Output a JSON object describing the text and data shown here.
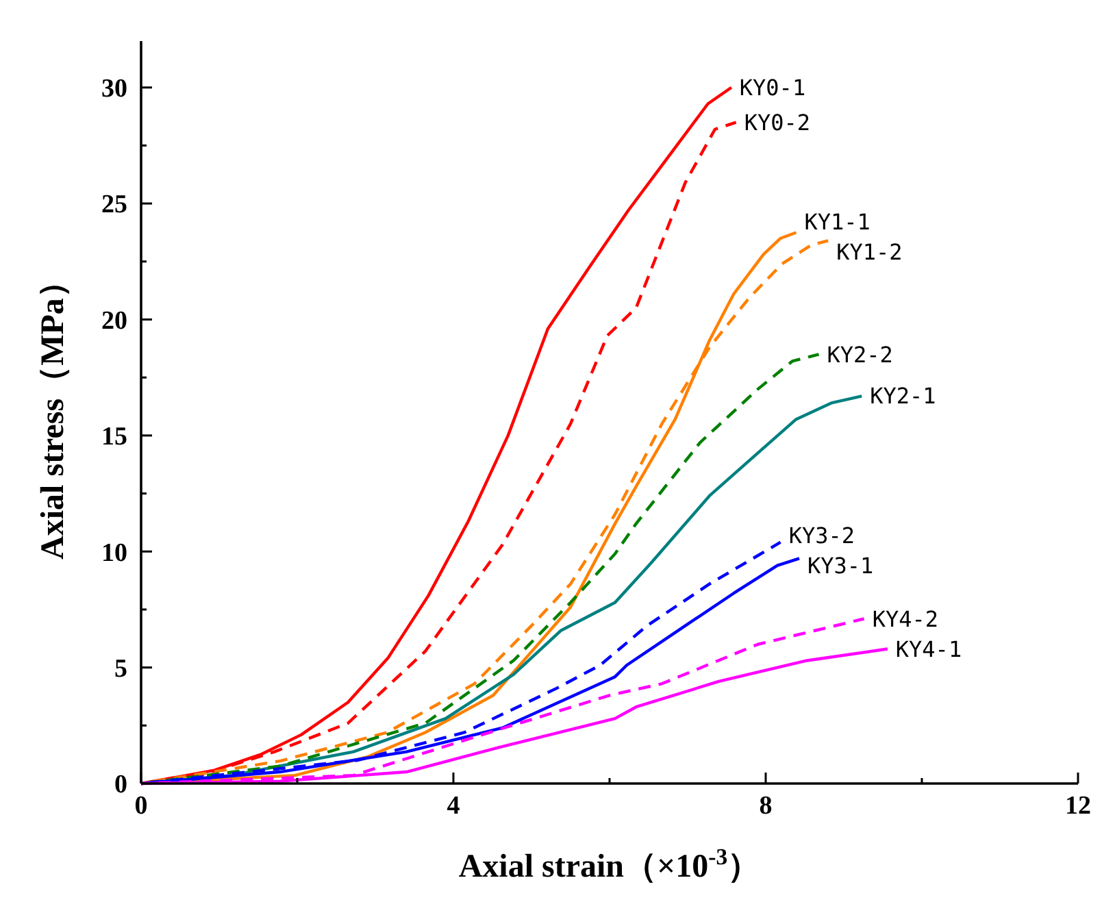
{
  "chart_data": {
    "type": "line",
    "xlabel": "Axial strain（×10$^{-3}$）",
    "ylabel": "Axial stress（MPa）",
    "xlim": [
      0,
      12
    ],
    "ylim": [
      0,
      32
    ],
    "xticks": [
      0,
      {
        "value": 2,
        "label": null
      },
      4,
      {
        "value": 6,
        "label": null
      },
      8,
      {
        "value": 10,
        "label": null
      },
      12
    ],
    "yticks": [
      0,
      {
        "value": 2.5,
        "label": null
      },
      5,
      {
        "value": 7.5,
        "label": null
      },
      10,
      {
        "value": 12.5,
        "label": null
      },
      15,
      {
        "value": 17.5,
        "label": null
      },
      20,
      {
        "value": 22.5,
        "label": null
      },
      25,
      {
        "value": 27.5,
        "label": null
      },
      30
    ],
    "grid": false,
    "marker": "none",
    "series": [
      {
        "name": "KY0-1",
        "color": "#ff0000",
        "line_style": "solid",
        "x": [
          0,
          0.5,
          0.94,
          1.54,
          2.05,
          2.65,
          3.16,
          3.68,
          4.19,
          4.7,
          5.21,
          5.73,
          6.24,
          6.75,
          7.26,
          7.56
        ],
        "values": [
          0,
          0.3,
          0.57,
          1.26,
          2.1,
          3.5,
          5.4,
          8.1,
          11.3,
          15.0,
          19.6,
          22.2,
          24.7,
          27.0,
          29.3,
          30.0
        ]
      },
      {
        "name": "KY0-2",
        "color": "#ff0000",
        "line_style": "dashed",
        "x": [
          0,
          0.8,
          1.71,
          2.65,
          3.64,
          4.63,
          5.5,
          5.97,
          6.34,
          6.97,
          7.35,
          7.62
        ],
        "values": [
          0,
          0.4,
          1.37,
          2.6,
          5.7,
          10.3,
          15.5,
          19.3,
          20.5,
          25.9,
          28.2,
          28.5
        ]
      },
      {
        "name": "KY1-1",
        "color": "#ff8000",
        "line_style": "solid",
        "x": [
          0,
          1.97,
          2.9,
          3.64,
          4.51,
          5.5,
          6.07,
          6.34,
          6.84,
          7.28,
          7.59,
          7.97,
          8.19,
          8.39
        ],
        "values": [
          0,
          0.35,
          1.15,
          2.2,
          3.8,
          7.6,
          11.2,
          12.8,
          15.7,
          19.1,
          21.1,
          22.8,
          23.5,
          23.75
        ]
      },
      {
        "name": "KY1-2",
        "color": "#ff8000",
        "line_style": "dashed",
        "x": [
          0,
          1.78,
          3.15,
          4.27,
          5.0,
          5.5,
          6.07,
          6.67,
          7.28,
          7.78,
          8.21,
          8.58,
          8.8
        ],
        "values": [
          0,
          0.97,
          2.2,
          4.3,
          6.8,
          8.6,
          11.6,
          15.5,
          18.8,
          20.9,
          22.4,
          23.2,
          23.4
        ]
      },
      {
        "name": "KY2-1",
        "color": "#008080",
        "line_style": "solid",
        "x": [
          0,
          1.16,
          2.72,
          3.9,
          4.77,
          5.38,
          6.07,
          6.53,
          7.28,
          7.85,
          8.39,
          8.84,
          9.23
        ],
        "values": [
          0,
          0.35,
          1.37,
          2.8,
          4.7,
          6.6,
          7.8,
          9.5,
          12.4,
          14.1,
          15.7,
          16.4,
          16.7
        ]
      },
      {
        "name": "KY2-2",
        "color": "#008000",
        "line_style": "dashed",
        "x": [
          0,
          1.78,
          3.64,
          4.77,
          5.5,
          6.07,
          6.34,
          7.16,
          7.9,
          8.34,
          8.68
        ],
        "values": [
          0,
          0.75,
          2.6,
          5.3,
          7.8,
          9.9,
          11.2,
          14.7,
          17.0,
          18.2,
          18.5
        ]
      },
      {
        "name": "KY3-1",
        "color": "#0000ff",
        "line_style": "solid",
        "x": [
          0,
          1.78,
          3.4,
          4.63,
          6.07,
          6.22,
          6.97,
          7.59,
          8.15,
          8.43
        ],
        "values": [
          0,
          0.5,
          1.37,
          2.4,
          4.6,
          5.1,
          6.8,
          8.2,
          9.4,
          9.7
        ]
      },
      {
        "name": "KY3-2",
        "color": "#0000ff",
        "line_style": "dashed",
        "x": [
          0,
          2.77,
          4.14,
          5.32,
          5.88,
          6.48,
          7.28,
          8.19
        ],
        "values": [
          0,
          1.0,
          2.2,
          4.1,
          5.1,
          6.8,
          8.6,
          10.4
        ]
      },
      {
        "name": "KY4-1",
        "color": "#ff00ff",
        "line_style": "solid",
        "x": [
          0,
          1.78,
          3.4,
          4.58,
          6.07,
          6.34,
          7.4,
          8.53,
          9.56
        ],
        "values": [
          0,
          0.1,
          0.5,
          1.55,
          2.8,
          3.3,
          4.4,
          5.3,
          5.8
        ]
      },
      {
        "name": "KY4-2",
        "color": "#ff00ff",
        "line_style": "dashed",
        "x": [
          0,
          2.72,
          4.27,
          6.0,
          6.67,
          7.9,
          9.26
        ],
        "values": [
          0,
          0.35,
          2.0,
          3.8,
          4.3,
          6.0,
          7.1
        ]
      }
    ]
  }
}
